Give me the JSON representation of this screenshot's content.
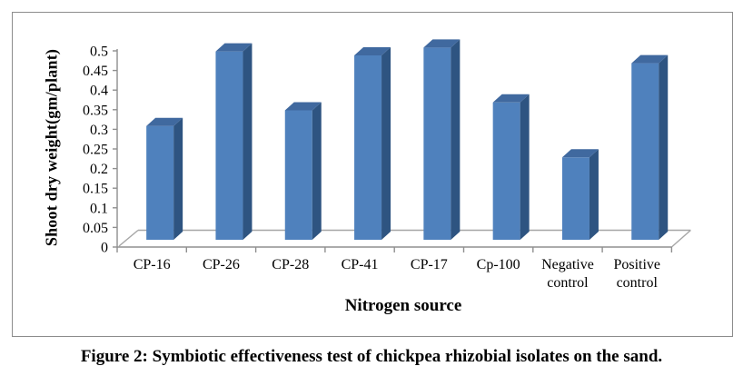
{
  "figure_caption": "Figure 2: Symbiotic effectiveness test of chickpea rhizobial isolates on the sand.",
  "chart_data": {
    "type": "bar",
    "style": "3d-column",
    "title": "",
    "xlabel": "Nitrogen source",
    "ylabel": "Shoot dry weight(gm/plant)",
    "categories": [
      "CP-16",
      "CP-26",
      "CP-28",
      "CP-41",
      "CP-17",
      "Cp-100",
      "Negative control",
      "Positive control"
    ],
    "values": [
      0.29,
      0.48,
      0.33,
      0.47,
      0.49,
      0.35,
      0.21,
      0.45
    ],
    "ylim": [
      0,
      0.5
    ],
    "ytick_step": 0.05,
    "ytick_labels": [
      "0",
      "0.05",
      "0.1",
      "0.15",
      "0.2",
      "0.25",
      "0.3",
      "0.35",
      "0.4",
      "0.45",
      "0.5"
    ],
    "grid": false,
    "legend": "none",
    "colors": {
      "bar_front": "#4f81bd",
      "bar_side": "#2e5481",
      "bar_top": "#40699f",
      "axis_line": "#8f8f8f",
      "floor_line": "#a6a6a6",
      "frame_border": "#8c8c8c",
      "text": "#000000",
      "background": "#ffffff"
    }
  }
}
